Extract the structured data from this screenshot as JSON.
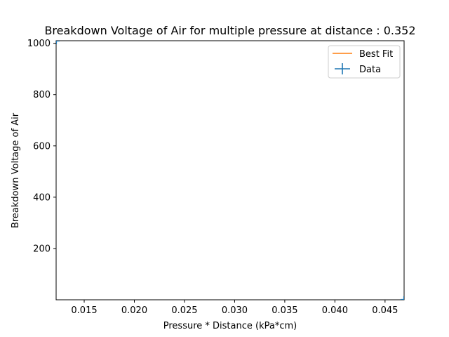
{
  "chart_data": {
    "type": "scatter",
    "title": "Breakdown Voltage of Air for multiple pressure at distance : 0.352",
    "xlabel": "Pressure * Distance (kPa*cm)",
    "ylabel": "Breakdown Voltage of Air",
    "xlim": [
      0.0122,
      0.0469
    ],
    "ylim": [
      0,
      1010
    ],
    "x_ticks": [
      0.015,
      0.02,
      0.025,
      0.03,
      0.035,
      0.04,
      0.045
    ],
    "x_tick_labels": [
      "0.015",
      "0.020",
      "0.025",
      "0.030",
      "0.035",
      "0.040",
      "0.045"
    ],
    "y_ticks": [
      200,
      400,
      600,
      800,
      1000
    ],
    "y_tick_labels": [
      "200",
      "400",
      "600",
      "800",
      "1000"
    ],
    "grid": false,
    "legend_position": "top-right",
    "series": [
      {
        "name": "Best Fit",
        "kind": "line",
        "color": "#ff7f0e",
        "x": [],
        "y": []
      },
      {
        "name": "Data",
        "kind": "errorbar",
        "color": "#1f77b4",
        "x": [
          0.0122,
          0.0469
        ],
        "y": [
          1010,
          0
        ]
      }
    ]
  }
}
